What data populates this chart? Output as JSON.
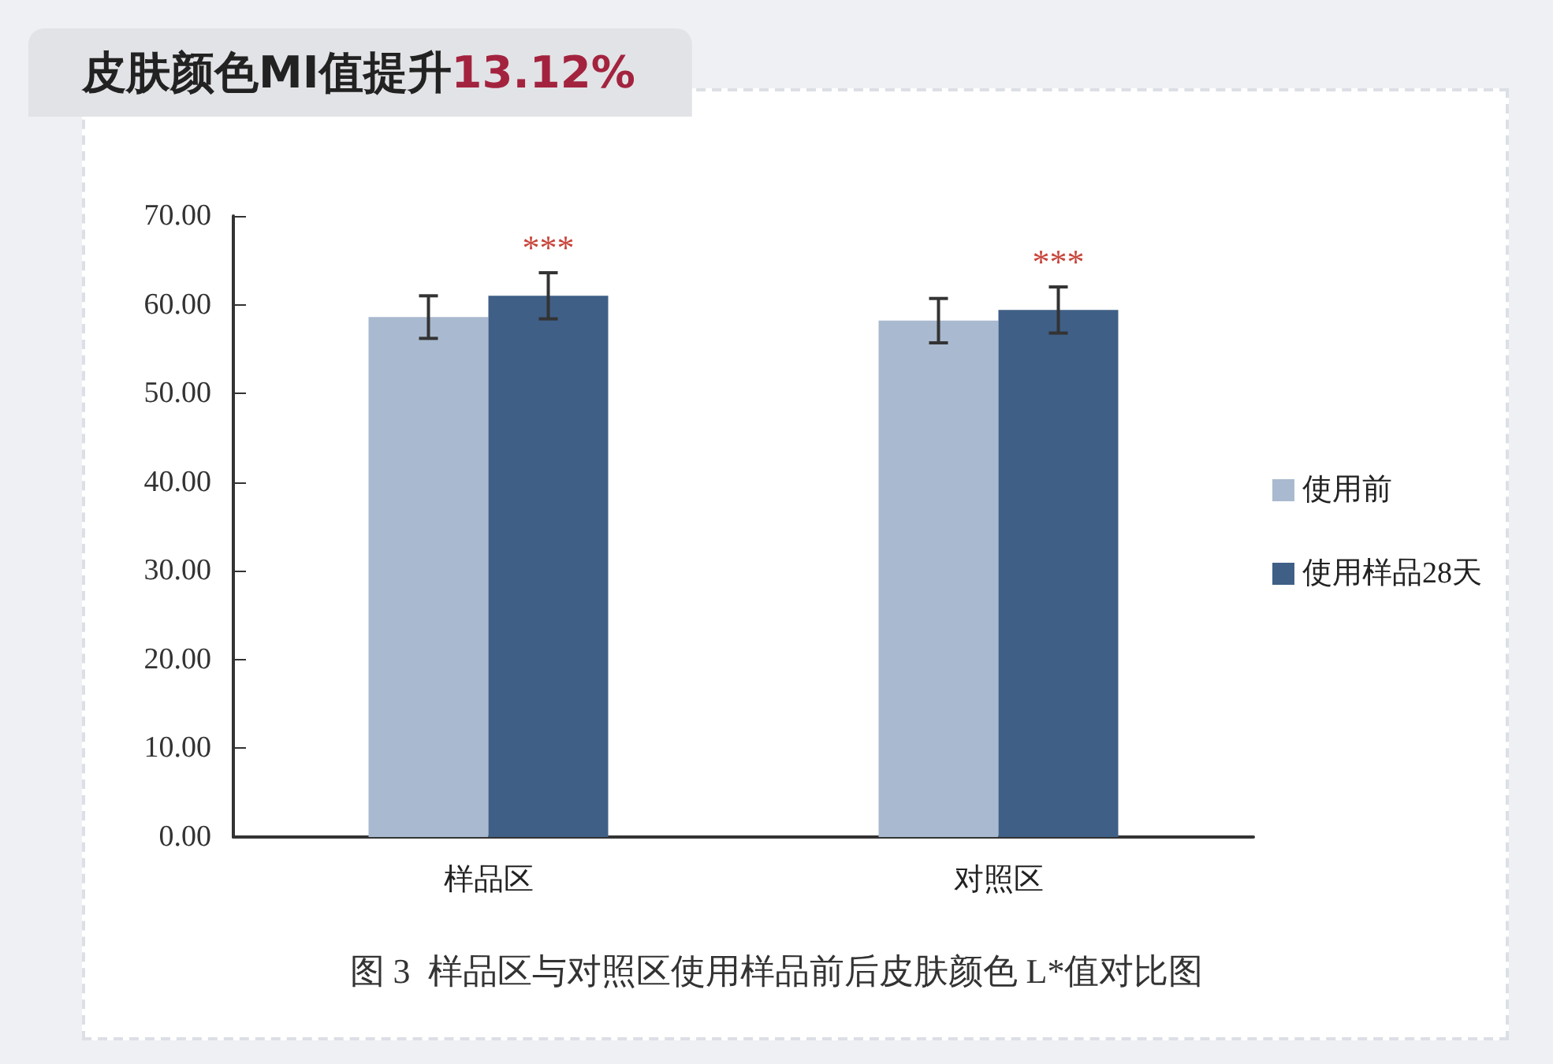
{
  "chart_data": {
    "type": "bar",
    "title": "皮肤颜色MI值提升13.12%",
    "categories": [
      "样品区",
      "对照区"
    ],
    "series": [
      {
        "name": "使用前",
        "color": "#a9b9cf",
        "values": [
          58.6,
          58.2
        ],
        "errors": [
          2.4,
          2.5
        ]
      },
      {
        "name": "使用样品28天",
        "color": "#3f5f86",
        "values": [
          61.0,
          59.4
        ],
        "errors": [
          2.6,
          2.6
        ]
      }
    ],
    "ylim": [
      0,
      70
    ],
    "yticks": [
      {
        "value": 0,
        "label": "0.00"
      },
      {
        "value": 10,
        "label": "10.00"
      },
      {
        "value": 20,
        "label": "20.00"
      },
      {
        "value": 30,
        "label": "30.00"
      },
      {
        "value": 40,
        "label": "40.00"
      },
      {
        "value": 50,
        "label": "50.00"
      },
      {
        "value": 60,
        "label": "60.00"
      },
      {
        "value": 70,
        "label": "70.00"
      }
    ],
    "annotations": [
      "***",
      "***",
      "图 3  样品区与对照区使用样品前后皮肤颜色 L*值对比图"
    ],
    "grid": false,
    "legend": "right"
  }
}
